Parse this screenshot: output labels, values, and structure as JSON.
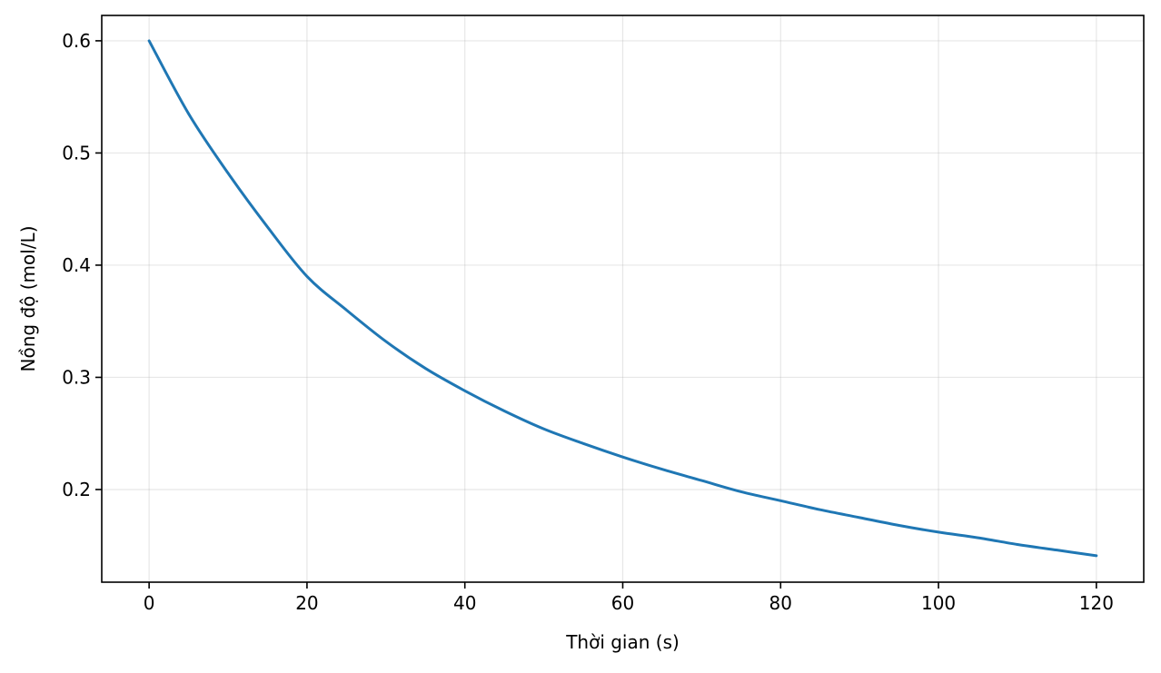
{
  "chart_data": {
    "type": "line",
    "title": "",
    "xlabel": "Thời gian (s)",
    "ylabel": "Nồng độ (mol/L)",
    "xlim": [
      -6,
      126
    ],
    "ylim": [
      0.1174,
      0.6226
    ],
    "xticks": [
      0,
      20,
      40,
      60,
      80,
      100,
      120
    ],
    "xtick_labels": [
      "0",
      "20",
      "40",
      "60",
      "80",
      "100",
      "120"
    ],
    "yticks": [
      0.2,
      0.3,
      0.4,
      0.5,
      0.6
    ],
    "ytick_labels": [
      "0.2",
      "0.3",
      "0.4",
      "0.5",
      "0.6"
    ],
    "grid": true,
    "series": [
      {
        "color": "#1f77b4",
        "x": [
          0,
          5,
          10,
          15,
          20,
          25,
          30,
          35,
          40,
          45,
          50,
          55,
          60,
          65,
          70,
          75,
          80,
          85,
          90,
          95,
          100,
          105,
          110,
          115,
          120
        ],
        "y": [
          0.6,
          0.535,
          0.482,
          0.434,
          0.39,
          0.36,
          0.332,
          0.308,
          0.288,
          0.27,
          0.254,
          0.241,
          0.229,
          0.218,
          0.208,
          0.198,
          0.19,
          0.182,
          0.175,
          0.168,
          0.162,
          0.157,
          0.151,
          0.146,
          0.141
        ]
      }
    ]
  }
}
